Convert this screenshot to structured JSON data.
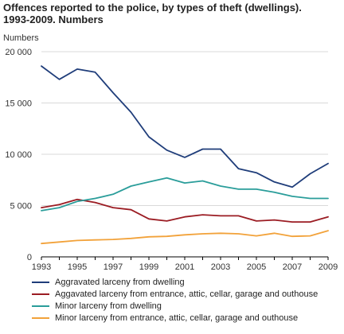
{
  "title_line1": "Offences reported to the police, by types of theft (dwellings).",
  "title_line2": "1993-2009. Numbers",
  "chart_data": {
    "type": "line",
    "title": "Offences reported to the police, by types of theft (dwellings). 1993-2009. Numbers",
    "ylabel": "Numbers",
    "xlabel": "",
    "x": [
      1993,
      1994,
      1995,
      1996,
      1997,
      1998,
      1999,
      2000,
      2001,
      2002,
      2003,
      2004,
      2005,
      2006,
      2007,
      2008,
      2009
    ],
    "x_ticks": [
      "1993",
      "1995",
      "1997",
      "1999",
      "2001",
      "2003",
      "2005",
      "2007",
      "2009"
    ],
    "y_ticks": [
      "0",
      "5 000",
      "10 000",
      "15 000",
      "20 000"
    ],
    "ylim": [
      0,
      20000
    ],
    "xlim": [
      1993,
      2009
    ],
    "grid": "horizontal",
    "legend_position": "bottom",
    "series": [
      {
        "name": "Aggravated larceny from dwelling",
        "color": "#1f3d7a",
        "values": [
          18600,
          17300,
          18300,
          18000,
          16000,
          14100,
          11700,
          10400,
          9700,
          10500,
          10500,
          8600,
          8200,
          7300,
          6800,
          8100,
          9100
        ]
      },
      {
        "name": "Aggavated larceny from entrance, attic, cellar, garage and outhouse",
        "color": "#9b1c23",
        "values": [
          4800,
          5100,
          5600,
          5300,
          4800,
          4600,
          3700,
          3500,
          3900,
          4100,
          4000,
          4000,
          3500,
          3600,
          3400,
          3400,
          3900
        ]
      },
      {
        "name": "Minor larceny from dwelling",
        "color": "#2a9d9a",
        "values": [
          4500,
          4800,
          5400,
          5700,
          6100,
          6900,
          7300,
          7700,
          7200,
          7400,
          6900,
          6600,
          6600,
          6300,
          5900,
          5700,
          5700
        ]
      },
      {
        "name": "Minor larceny from entrance, attic, cellar, garage and outhouse",
        "color": "#f2a23a",
        "values": [
          1300,
          1450,
          1600,
          1650,
          1700,
          1800,
          1950,
          2000,
          2150,
          2250,
          2300,
          2250,
          2050,
          2300,
          2000,
          2050,
          2550
        ]
      }
    ]
  }
}
